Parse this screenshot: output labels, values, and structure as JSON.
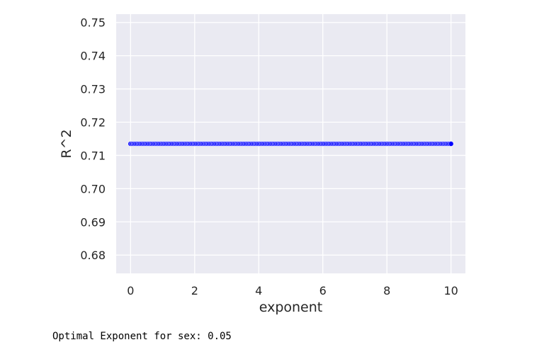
{
  "chart_data": {
    "type": "scatter",
    "title": "",
    "xlabel": "exponent",
    "ylabel": "R^2",
    "xlim": [
      -0.45,
      10.45
    ],
    "ylim": [
      0.6745,
      0.7525
    ],
    "x_ticks": [
      0,
      2,
      4,
      6,
      8,
      10
    ],
    "x_tick_labels": [
      "0",
      "2",
      "4",
      "6",
      "8",
      "10"
    ],
    "y_ticks": [
      0.68,
      0.69,
      0.7,
      0.71,
      0.72,
      0.73,
      0.74,
      0.75
    ],
    "y_tick_labels": [
      "0.68",
      "0.69",
      "0.70",
      "0.71",
      "0.72",
      "0.73",
      "0.74",
      "0.75"
    ],
    "grid": true,
    "marker_color": "#0000ff",
    "background_color": "#eaeaf2",
    "series": [
      {
        "x_start": 0.0,
        "x_end": 10.0,
        "x_step": 0.05,
        "y_constant": 0.7135
      }
    ]
  },
  "output": {
    "text": "Optimal Exponent for sex: 0.05"
  }
}
